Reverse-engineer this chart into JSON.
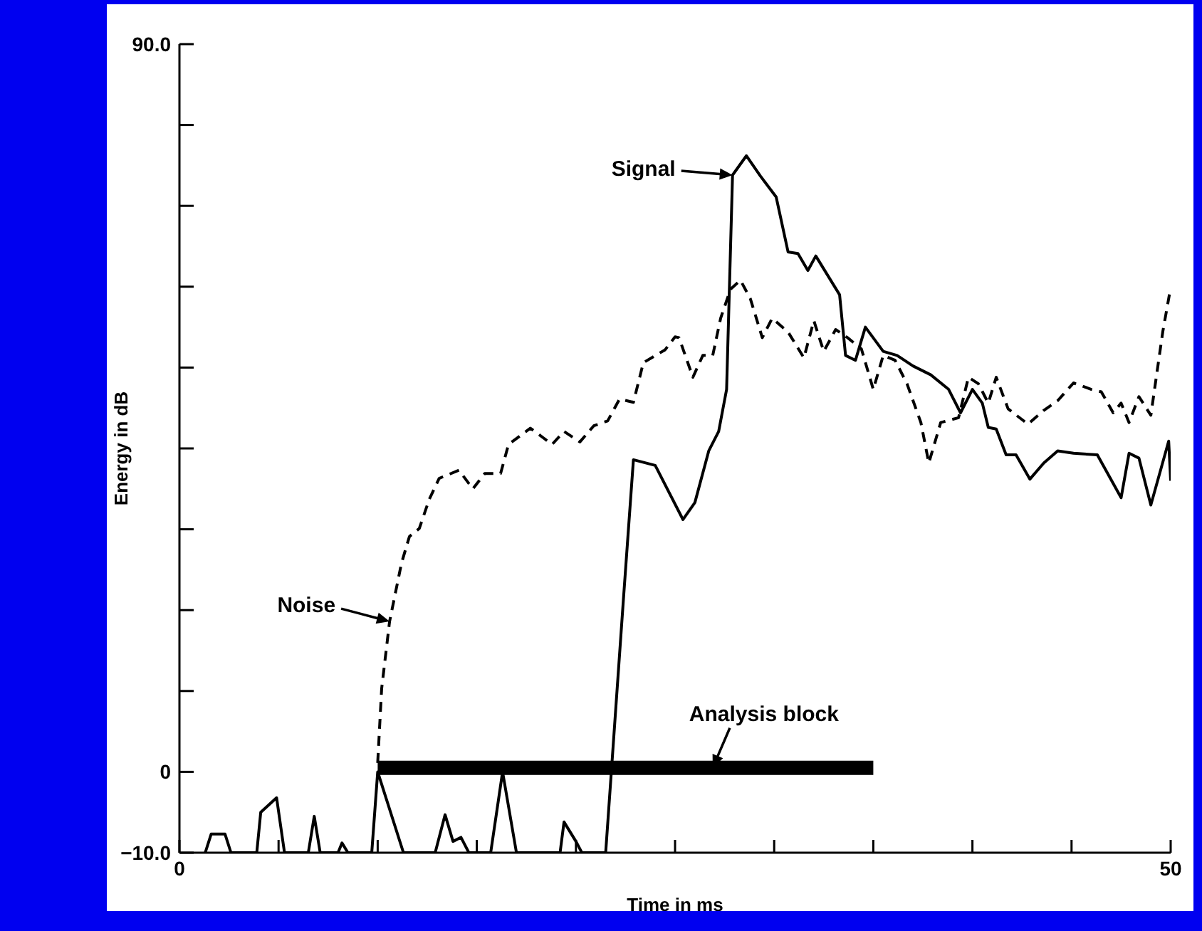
{
  "chart_data": {
    "type": "line",
    "xlabel": "Time in ms",
    "ylabel": "Energy in dB",
    "xlim": [
      0,
      50
    ],
    "xticks": [
      0,
      {
        "value": 5,
        "label": null
      },
      {
        "value": 10,
        "label": null
      },
      {
        "value": 15,
        "label": null
      },
      {
        "value": 20,
        "label": null
      },
      {
        "value": 25,
        "label": null
      },
      {
        "value": 30,
        "label": null
      },
      {
        "value": 35,
        "label": null
      },
      {
        "value": 40,
        "label": null
      },
      {
        "value": 45,
        "label": null
      },
      50
    ],
    "ylim": [
      -10,
      90
    ],
    "yticks": [
      {
        "value": -10,
        "label": "−10.0"
      },
      0,
      {
        "value": 10,
        "label": null
      },
      {
        "value": 20,
        "label": null
      },
      {
        "value": 30,
        "label": null
      },
      {
        "value": 40,
        "label": null
      },
      {
        "value": 50,
        "label": null
      },
      {
        "value": 60,
        "label": null
      },
      {
        "value": 70,
        "label": null
      },
      {
        "value": 80,
        "label": null
      },
      {
        "value": 90,
        "label": "90.0"
      }
    ],
    "grid": false,
    "annotations": [
      {
        "text": "Signal",
        "x": 27.9,
        "y": 73.8
      },
      {
        "text": "Noise",
        "x": 10.6,
        "y": 18.6
      },
      {
        "text": "Analysis block",
        "x": 26.9,
        "y": 0.5
      }
    ],
    "series": [
      {
        "color": "#000000",
        "line_style": "solid",
        "x": [
          1.3,
          1.6,
          2.3,
          2.6,
          3.9,
          4.1,
          4.9,
          5.3,
          6.5,
          6.8,
          7.1,
          8.0,
          8.2,
          8.5,
          9.7,
          10.0,
          11.3,
          12.9,
          13.4,
          13.8,
          14.2,
          14.6,
          15.7,
          16.3,
          17.0,
          19.2,
          19.4,
          20.0,
          20.3,
          21.5,
          22.4,
          22.9,
          24.0,
          25.4,
          26.0,
          26.7,
          27.2,
          27.6,
          27.9,
          28.6,
          29.3,
          30.1,
          30.7,
          31.2,
          31.7,
          32.1,
          32.7,
          33.3,
          33.6,
          34.1,
          34.6,
          35.5,
          36.2,
          37.0,
          37.9,
          38.8,
          39.4,
          40.0,
          40.5,
          40.8,
          41.2,
          41.7,
          42.2,
          42.9,
          43.6,
          44.3,
          45.1,
          46.3,
          47.5,
          47.9,
          48.4,
          49.0,
          49.9,
          50
        ],
        "values": [
          -10,
          -7.7,
          -7.7,
          -10,
          -10,
          -5,
          -3.2,
          -10,
          -10,
          -5.5,
          -10,
          -10,
          -8.8,
          -10,
          -10,
          0,
          -10,
          -10,
          -5.3,
          -8.6,
          -8.1,
          -10,
          -10,
          0,
          -10,
          -10,
          -6.2,
          -8.6,
          -10,
          -10,
          21.5,
          38.6,
          37.9,
          31.2,
          33.3,
          39.7,
          42.1,
          47.3,
          73.8,
          76.2,
          73.7,
          71.1,
          64.3,
          64.1,
          62.0,
          63.8,
          61.4,
          59.0,
          51.5,
          50.9,
          55.0,
          52.0,
          51.5,
          50.2,
          49.1,
          47.3,
          44.4,
          47.3,
          45.6,
          42.6,
          42.4,
          39.2,
          39.2,
          36.2,
          38.2,
          39.7,
          39.4,
          39.2,
          33.9,
          39.4,
          38.8,
          33.0,
          40.9,
          36.0
        ]
      },
      {
        "color": "#000000",
        "line_style": "dashed",
        "x": [
          10.0,
          10.2,
          10.6,
          11.2,
          11.6,
          12.1,
          12.6,
          13.1,
          14.1,
          14.8,
          15.4,
          16.2,
          16.6,
          17.7,
          18.8,
          19.4,
          20.2,
          20.9,
          21.6,
          22.2,
          22.9,
          23.4,
          24.5,
          25.0,
          25.2,
          25.9,
          26.4,
          26.9,
          27.3,
          27.8,
          28.3,
          28.8,
          29.4,
          29.9,
          30.7,
          31.5,
          32.0,
          32.5,
          33.1,
          33.7,
          34.4,
          35.0,
          35.5,
          36.1,
          36.7,
          37.4,
          37.8,
          38.4,
          39.3,
          39.8,
          40.3,
          40.8,
          41.2,
          41.8,
          42.8,
          43.6,
          44.3,
          45.1,
          46.0,
          46.5,
          47.1,
          47.5,
          47.9,
          48.4,
          49.0,
          49.6,
          50
        ],
        "values": [
          1.1,
          10.3,
          18.6,
          25.8,
          29.1,
          30.1,
          33.7,
          36.3,
          37.3,
          35.0,
          36.9,
          36.9,
          40.5,
          42.5,
          40.5,
          42.1,
          40.8,
          42.8,
          43.4,
          46.1,
          45.7,
          50.6,
          52.2,
          53.8,
          53.7,
          48.8,
          51.5,
          51.5,
          56.1,
          59.7,
          60.8,
          58.5,
          53.7,
          56.1,
          54.4,
          51.2,
          55.8,
          52.0,
          54.7,
          53.7,
          52.3,
          47.3,
          51.5,
          50.9,
          48.0,
          43.2,
          38.2,
          43.2,
          43.8,
          48.8,
          48.0,
          45.6,
          48.8,
          44.9,
          43.0,
          44.7,
          45.9,
          48.1,
          47.3,
          47.0,
          44.4,
          45.6,
          43.2,
          46.4,
          44.1,
          54.4,
          59.9
        ]
      },
      {
        "color": "#000000",
        "line_style": "solid",
        "x": [
          10.0,
          35.0
        ],
        "values": [
          0.5,
          0.5
        ]
      }
    ]
  }
}
